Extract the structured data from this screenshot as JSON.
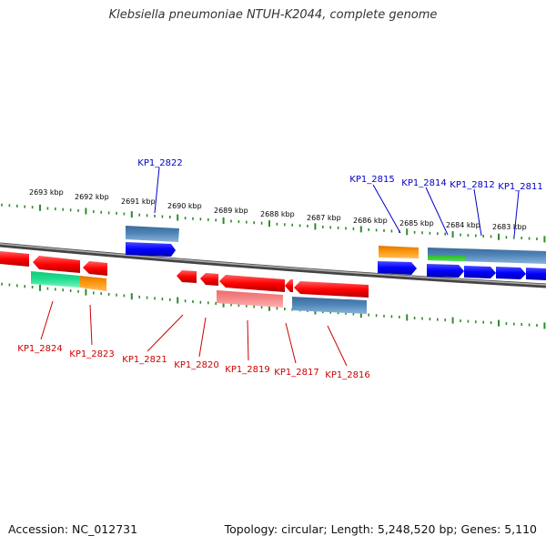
{
  "title": "Klebsiella pneumoniae NTUH-K2044, complete genome",
  "footer": {
    "accession": "Accession: NC_012731",
    "summary": "Topology: circular; Length: 5,248,520 bp; Genes: 5,110"
  },
  "colors": {
    "forward_label": "#0000cc",
    "reverse_label": "#cc0000",
    "tick": "#2e8b2e",
    "backbone": "#808080"
  },
  "scale_labels": [
    "2693 kbp",
    "2692 kbp",
    "2691 kbp",
    "2690 kbp",
    "2689 kbp",
    "2688 kbp",
    "2687 kbp",
    "2686 kbp",
    "2685 kbp",
    "2684 kbp",
    "2683 kbp"
  ],
  "forward_labels": [
    "KP1_2822",
    "KP1_2815",
    "KP1_2814",
    "KP1_2812",
    "KP1_2811"
  ],
  "reverse_labels": [
    "KP1_2824",
    "KP1_2823",
    "KP1_2821",
    "KP1_2820",
    "KP1_2819",
    "KP1_2817",
    "KP1_2816"
  ]
}
